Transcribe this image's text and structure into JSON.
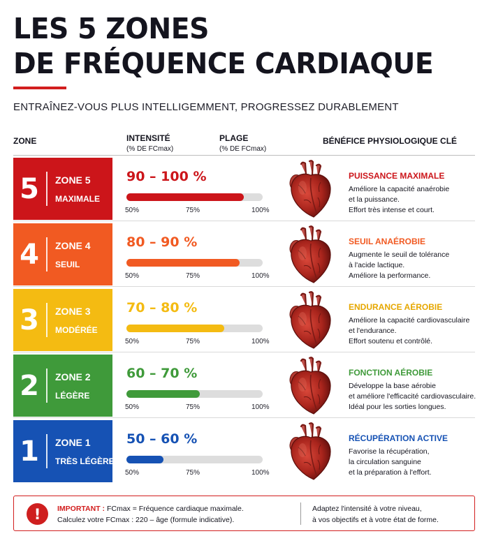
{
  "title": {
    "line1": "LES 5 ZONES",
    "line2": "DE FRÉQUENCE CARDIAQUE",
    "accent_color": "#d21e1e"
  },
  "subtitle": "ENTRAÎNEZ-VOUS PLUS INTELLIGEMMENT, PROGRESSEZ DURABLEMENT",
  "headers": {
    "zone": "ZONE",
    "intensity": "INTENSITÉ",
    "intensity_sub": "(% DE FCmax)",
    "range": "PLAGE",
    "range_sub": "(% DE FCmax)",
    "benefit": "BÉNÉFICE PHYSIOLOGIQUE CLÉ"
  },
  "ticks": [
    "50%",
    "75%",
    "100%"
  ],
  "zones": [
    {
      "number": "5",
      "label": "ZONE 5",
      "sublabel": "MAXIMALE",
      "color": "#cc151a",
      "range": "90 – 100 %",
      "fill": 0.86,
      "benefit_title": "PUISSANCE MAXIMALE",
      "benefit_lines": [
        "Améliore la capacité anaérobie",
        "et la puissance.",
        "Effort très intense et court."
      ],
      "heart_icon": "anatomical-heart"
    },
    {
      "number": "4",
      "label": "ZONE 4",
      "sublabel": "SEUIL",
      "color": "#f15a22",
      "range": "80 – 90 %",
      "fill": 0.83,
      "benefit_title": "SEUIL ANAÉROBIE",
      "benefit_lines": [
        "Augmente le seuil de tolérance",
        "à l'acide lactique.",
        "Améliore la performance."
      ],
      "heart_icon": "anatomical-heart"
    },
    {
      "number": "3",
      "label": "ZONE 3",
      "sublabel": "MODÉRÉE",
      "color": "#f4bb12",
      "range": "70 – 80 %",
      "fill": 0.72,
      "benefit_title": "ENDURANCE AÉROBIE",
      "benefit_lines": [
        "Améliore la capacité cardiovasculaire",
        "et l'endurance.",
        "Effort soutenu et contrôlé."
      ],
      "heart_icon": "anatomical-heart"
    },
    {
      "number": "2",
      "label": "ZONE 2",
      "sublabel": "LÉGÈRE",
      "color": "#3f9a3a",
      "range": "60 – 70 %",
      "fill": 0.54,
      "benefit_title": "FONCTION AÉROBIE",
      "benefit_lines": [
        "Développe la base aérobie",
        "et améliore l'efficacité cardiovasculaire.",
        "Idéal pour les sorties longues."
      ],
      "heart_icon": "anatomical-heart"
    },
    {
      "number": "1",
      "label": "ZONE 1",
      "sublabel": "TRÈS LÉGÈRE",
      "color": "#1652b4",
      "range": "50 – 60 %",
      "fill": 0.27,
      "benefit_title": "RÉCUPÉRATION ACTIVE",
      "benefit_lines": [
        "Favorise la récupération,",
        "la circulation sanguine",
        "et la préparation à l'effort."
      ],
      "heart_icon": "anatomical-heart"
    }
  ],
  "notice": {
    "icon": "exclamation-icon",
    "strong": "IMPORTANT :",
    "line1_rest": " FCmax = Fréquence cardiaque maximale.",
    "line2": "Calculez votre FCmax : 220 – âge (formule indicative).",
    "right_line1": "Adaptez l'intensité à votre niveau,",
    "right_line2": "à vos objectifs et à votre état de forme."
  }
}
